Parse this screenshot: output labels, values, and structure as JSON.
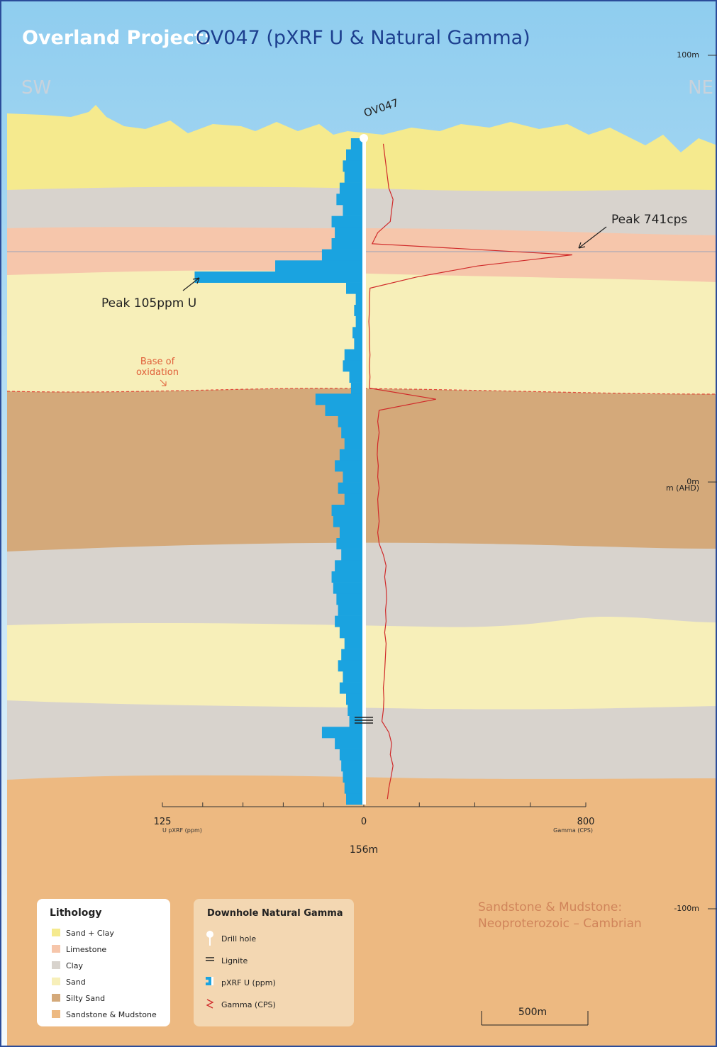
{
  "title": {
    "project": "Overland Project:",
    "hole": "OV047 (pXRF U & Natural Gamma)"
  },
  "directions": [
    "SW",
    "NE"
  ],
  "hole_label": "OV047",
  "annotations": {
    "gamma_peak": "Peak 741cps",
    "pxrf_peak": "Peak 105ppm U",
    "base_of_oxidation": [
      "Base of",
      "oxidation"
    ]
  },
  "elevation_axis": {
    "ticks": [
      {
        "value": 100,
        "label": "100m"
      },
      {
        "value": 0,
        "label": "0m"
      },
      {
        "value": -100,
        "label": "-100m"
      }
    ],
    "unit": "m (AHD)"
  },
  "log": {
    "pxrf_ppm": [
      8,
      11,
      13,
      12,
      15,
      17,
      13,
      20,
      18,
      20,
      26,
      55,
      105,
      11,
      5,
      6,
      5,
      7,
      6,
      12,
      13,
      9,
      8,
      30,
      24,
      16,
      14,
      12,
      15,
      18,
      13,
      16,
      12,
      20,
      19,
      15,
      17,
      14,
      18,
      20,
      19,
      17,
      16,
      18,
      15,
      12,
      14,
      16,
      13,
      15,
      11,
      10,
      9,
      26,
      18,
      15,
      14,
      13,
      12,
      11
    ],
    "gamma_cps": [
      60,
      65,
      70,
      75,
      80,
      95,
      90,
      85,
      40,
      20,
      741,
      400,
      180,
      12,
      10,
      10,
      8,
      10,
      10,
      12,
      10,
      12,
      10,
      250,
      45,
      40,
      45,
      40,
      38,
      42,
      40,
      45,
      40,
      42,
      45,
      40,
      45,
      60,
      70,
      65,
      70,
      72,
      68,
      70,
      65,
      70,
      68,
      66,
      64,
      60,
      62,
      60,
      55,
      80,
      90,
      85,
      95,
      88,
      80,
      75
    ],
    "pxrf_axis": {
      "ticks": [
        0,
        25,
        50,
        75,
        100,
        125
      ],
      "label": "U pXRF (ppm)"
    },
    "gamma_axis": {
      "ticks": [
        0,
        200,
        400,
        600,
        800
      ],
      "label": "Gamma (CPS)"
    },
    "total_depth": {
      "value": 156,
      "label": "156m"
    }
  },
  "lithology_legend": {
    "title": "Lithology",
    "items": [
      {
        "label": "Sand + Clay",
        "color": "#f5ea8e"
      },
      {
        "label": "Limestone",
        "color": "#f6c6ab"
      },
      {
        "label": "Clay",
        "color": "#d8d3cd"
      },
      {
        "label": "Sand",
        "color": "#f7efb9"
      },
      {
        "label": "Silty Sand",
        "color": "#d4a97a"
      },
      {
        "label": "Sandstone & Mudstone",
        "color": "#edb981"
      }
    ]
  },
  "gamma_legend": {
    "title": "Downhole Natural Gamma",
    "items": [
      "Drill hole",
      "Lignite",
      "pXRF U (ppm)",
      "Gamma (CPS)"
    ]
  },
  "basement": [
    "Sandstone & Mudstone:",
    "Neoproterozoic – Cambrian"
  ],
  "scale_bar": "500m"
}
